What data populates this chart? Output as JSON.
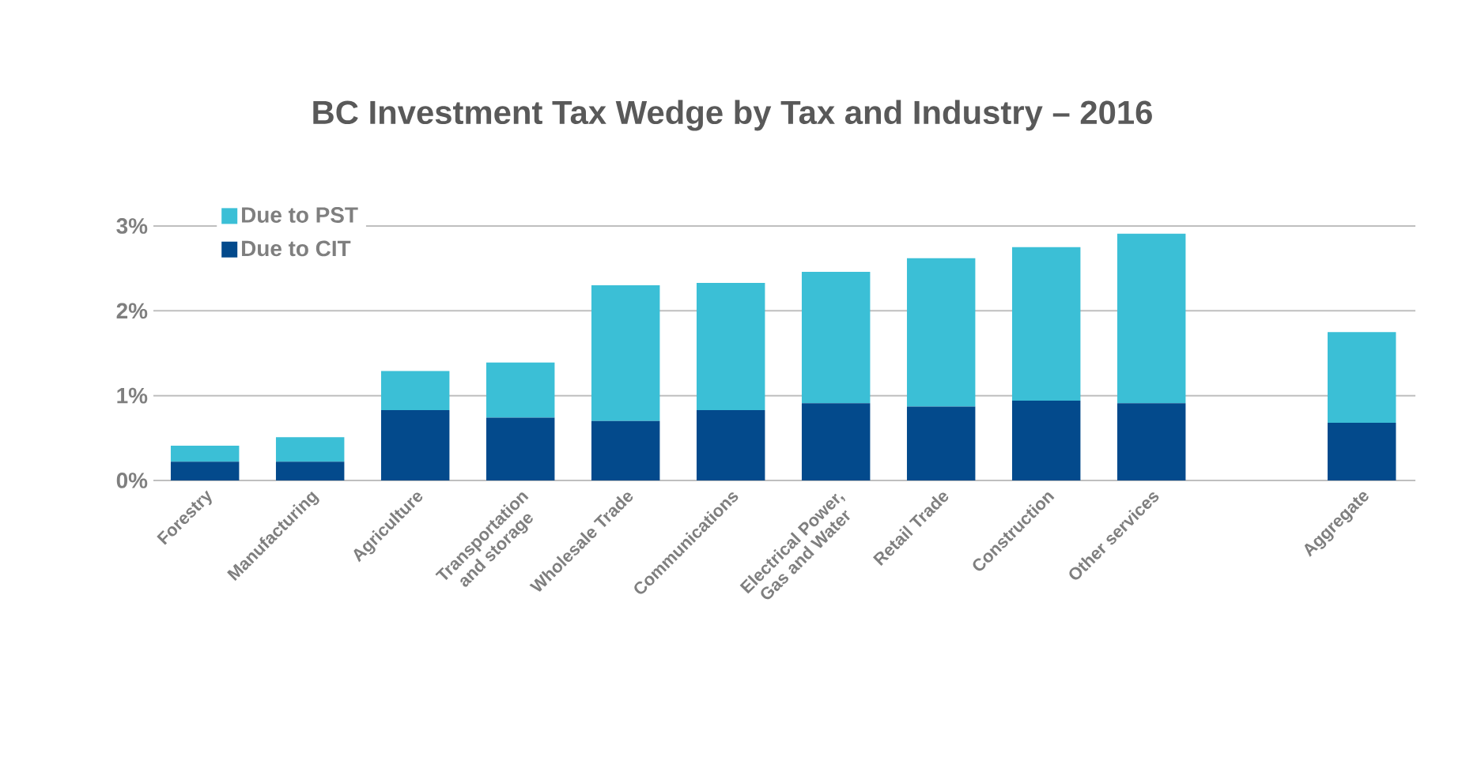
{
  "chart_data": {
    "type": "bar",
    "stacked": true,
    "title": "BC Investment Tax Wedge by Tax and Industry – 2016",
    "categories": [
      "Forestry",
      "Manufacturing",
      "Agriculture",
      "Transportation and storage",
      "Wholesale Trade",
      "Communications",
      "Electrical Power, Gas and Water",
      "Retail Trade",
      "Construction",
      "Other services",
      null,
      "Aggregate"
    ],
    "series": [
      {
        "name": "Due to CIT",
        "color": "#034a8c",
        "values": [
          0.22,
          0.22,
          0.83,
          0.74,
          0.7,
          0.83,
          0.91,
          0.87,
          0.94,
          0.91,
          null,
          0.68
        ]
      },
      {
        "name": "Due to PST",
        "color": "#3bbfd6",
        "values": [
          0.19,
          0.29,
          0.46,
          0.65,
          1.6,
          1.5,
          1.55,
          1.75,
          1.81,
          2.0,
          null,
          1.07
        ]
      }
    ],
    "ylim": [
      0,
      3
    ],
    "yticks": [
      {
        "value": 0,
        "label": "0%"
      },
      {
        "value": 1,
        "label": "1%"
      },
      {
        "value": 2,
        "label": "2%"
      },
      {
        "value": 3,
        "label": "3%"
      }
    ],
    "grid": "y",
    "legend": "top left"
  }
}
